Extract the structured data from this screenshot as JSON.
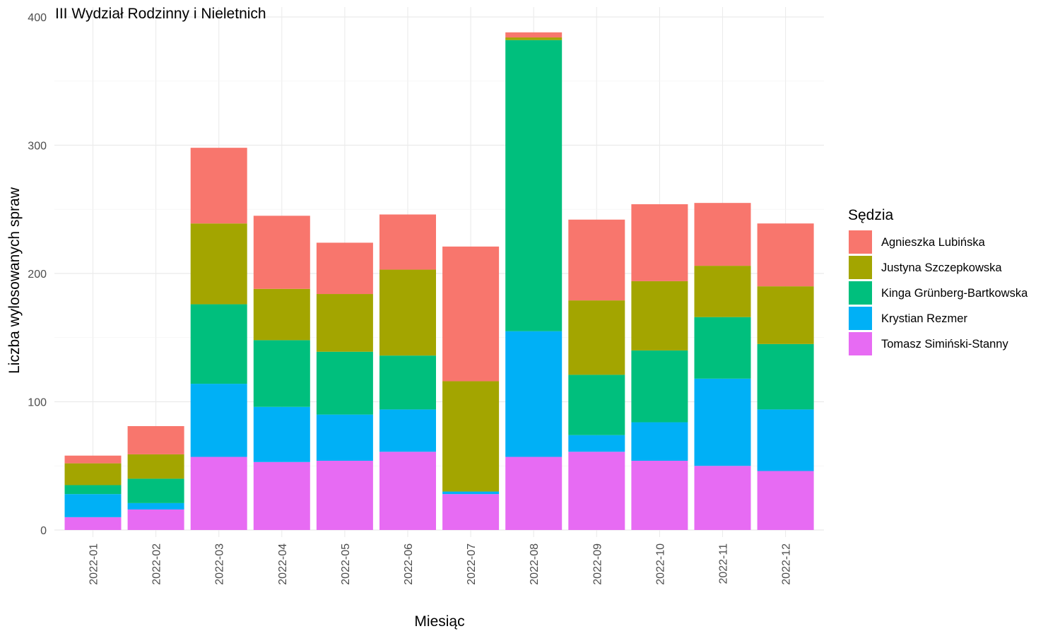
{
  "chart_data": {
    "type": "bar",
    "stacked": true,
    "title": "III Wydział Rodzinny i Nieletnich",
    "xlabel": "Miesiąc",
    "ylabel": "Liczba wylosowanych spraw",
    "ylim": [
      0,
      400
    ],
    "yticks": [
      0,
      100,
      200,
      300,
      400
    ],
    "grid": true,
    "legend_title": "Sędzia",
    "legend_position": "right",
    "categories": [
      "2022-01",
      "2022-02",
      "2022-03",
      "2022-04",
      "2022-05",
      "2022-06",
      "2022-07",
      "2022-08",
      "2022-09",
      "2022-10",
      "2022-11",
      "2022-12"
    ],
    "series": [
      {
        "name": "Tomasz Simiński-Stanny",
        "color": "#E76BF3",
        "values": [
          10,
          16,
          57,
          53,
          54,
          61,
          28,
          57,
          61,
          54,
          50,
          46
        ]
      },
      {
        "name": "Krystian Rezmer",
        "color": "#00B0F6",
        "values": [
          18,
          5,
          57,
          43,
          36,
          33,
          2,
          98,
          13,
          30,
          68,
          48
        ]
      },
      {
        "name": "Kinga Grünberg-Bartkowska",
        "color": "#00BF7D",
        "values": [
          7,
          19,
          62,
          52,
          49,
          42,
          0,
          227,
          47,
          56,
          48,
          51
        ]
      },
      {
        "name": "Justyna Szczepkowska",
        "color": "#A3A500",
        "values": [
          17,
          19,
          63,
          40,
          45,
          67,
          86,
          2,
          58,
          54,
          40,
          45
        ]
      },
      {
        "name": "Agnieszka Lubińska",
        "color": "#F8766D",
        "values": [
          6,
          22,
          59,
          57,
          40,
          43,
          105,
          4,
          63,
          60,
          49,
          49
        ]
      }
    ],
    "legend_order": [
      "Agnieszka Lubińska",
      "Justyna Szczepkowska",
      "Kinga Grünberg-Bartkowska",
      "Krystian Rezmer",
      "Tomasz Simiński-Stanny"
    ]
  }
}
